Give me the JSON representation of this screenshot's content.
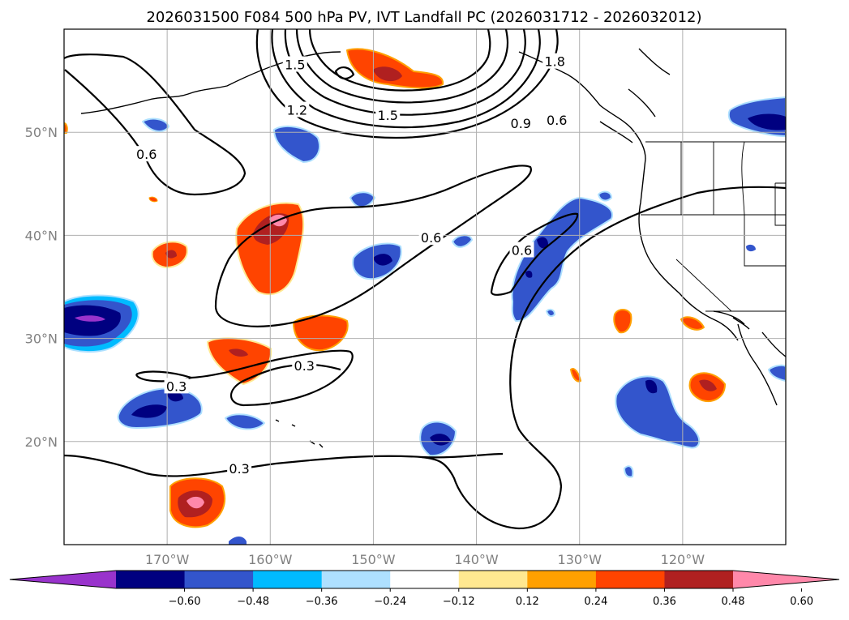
{
  "title": "2026031500 F084 500 hPa PV, IVT Landfall PC (2026031712 - 2026032012)",
  "axes": {
    "lon_ticks": [
      {
        "lon": -170,
        "label": "170°W"
      },
      {
        "lon": -160,
        "label": "160°W"
      },
      {
        "lon": -150,
        "label": "150°W"
      },
      {
        "lon": -140,
        "label": "140°W"
      },
      {
        "lon": -130,
        "label": "130°W"
      },
      {
        "lon": -120,
        "label": "120°W"
      }
    ],
    "lat_ticks": [
      {
        "lat": 50,
        "label": "50°N"
      },
      {
        "lat": 40,
        "label": "40°N"
      },
      {
        "lat": 30,
        "label": "30°N"
      },
      {
        "lat": 20,
        "label": "20°N"
      }
    ],
    "lon_range": [
      -180,
      -110
    ],
    "lat_range": [
      10,
      60
    ],
    "grid": true
  },
  "colorbar": {
    "extend": "both",
    "colors": [
      "#9933cc",
      "#000080",
      "#3355cc",
      "#00bbff",
      "#aee0ff",
      "#ffffff",
      "#ffe890",
      "#ffa000",
      "#ff4400",
      "#b02020",
      "#ff88aa"
    ],
    "tick_labels": [
      "−0.60",
      "−0.48",
      "−0.36",
      "−0.24",
      "−0.12",
      "0.12",
      "0.24",
      "0.36",
      "0.48",
      "0.60"
    ]
  },
  "contour_labels": [
    {
      "text": "1.5",
      "lon": -157.6,
      "lat": 56.5
    },
    {
      "text": "1.8",
      "lon": -132.4,
      "lat": 56.8
    },
    {
      "text": "1.2",
      "lon": -157.4,
      "lat": 52.1
    },
    {
      "text": "1.5",
      "lon": -148.6,
      "lat": 51.6
    },
    {
      "text": "0.9",
      "lon": -135.7,
      "lat": 50.8
    },
    {
      "text": "0.6",
      "lon": -132.2,
      "lat": 51.1
    },
    {
      "text": "0.6",
      "lon": -172.0,
      "lat": 47.8
    },
    {
      "text": "0.6",
      "lon": -144.4,
      "lat": 39.7
    },
    {
      "text": "0.6",
      "lon": -135.6,
      "lat": 38.5
    },
    {
      "text": "0.3",
      "lon": -156.7,
      "lat": 27.3
    },
    {
      "text": "0.3",
      "lon": -169.1,
      "lat": 25.3
    },
    {
      "text": "0.3",
      "lon": -163.0,
      "lat": 17.3
    }
  ]
}
